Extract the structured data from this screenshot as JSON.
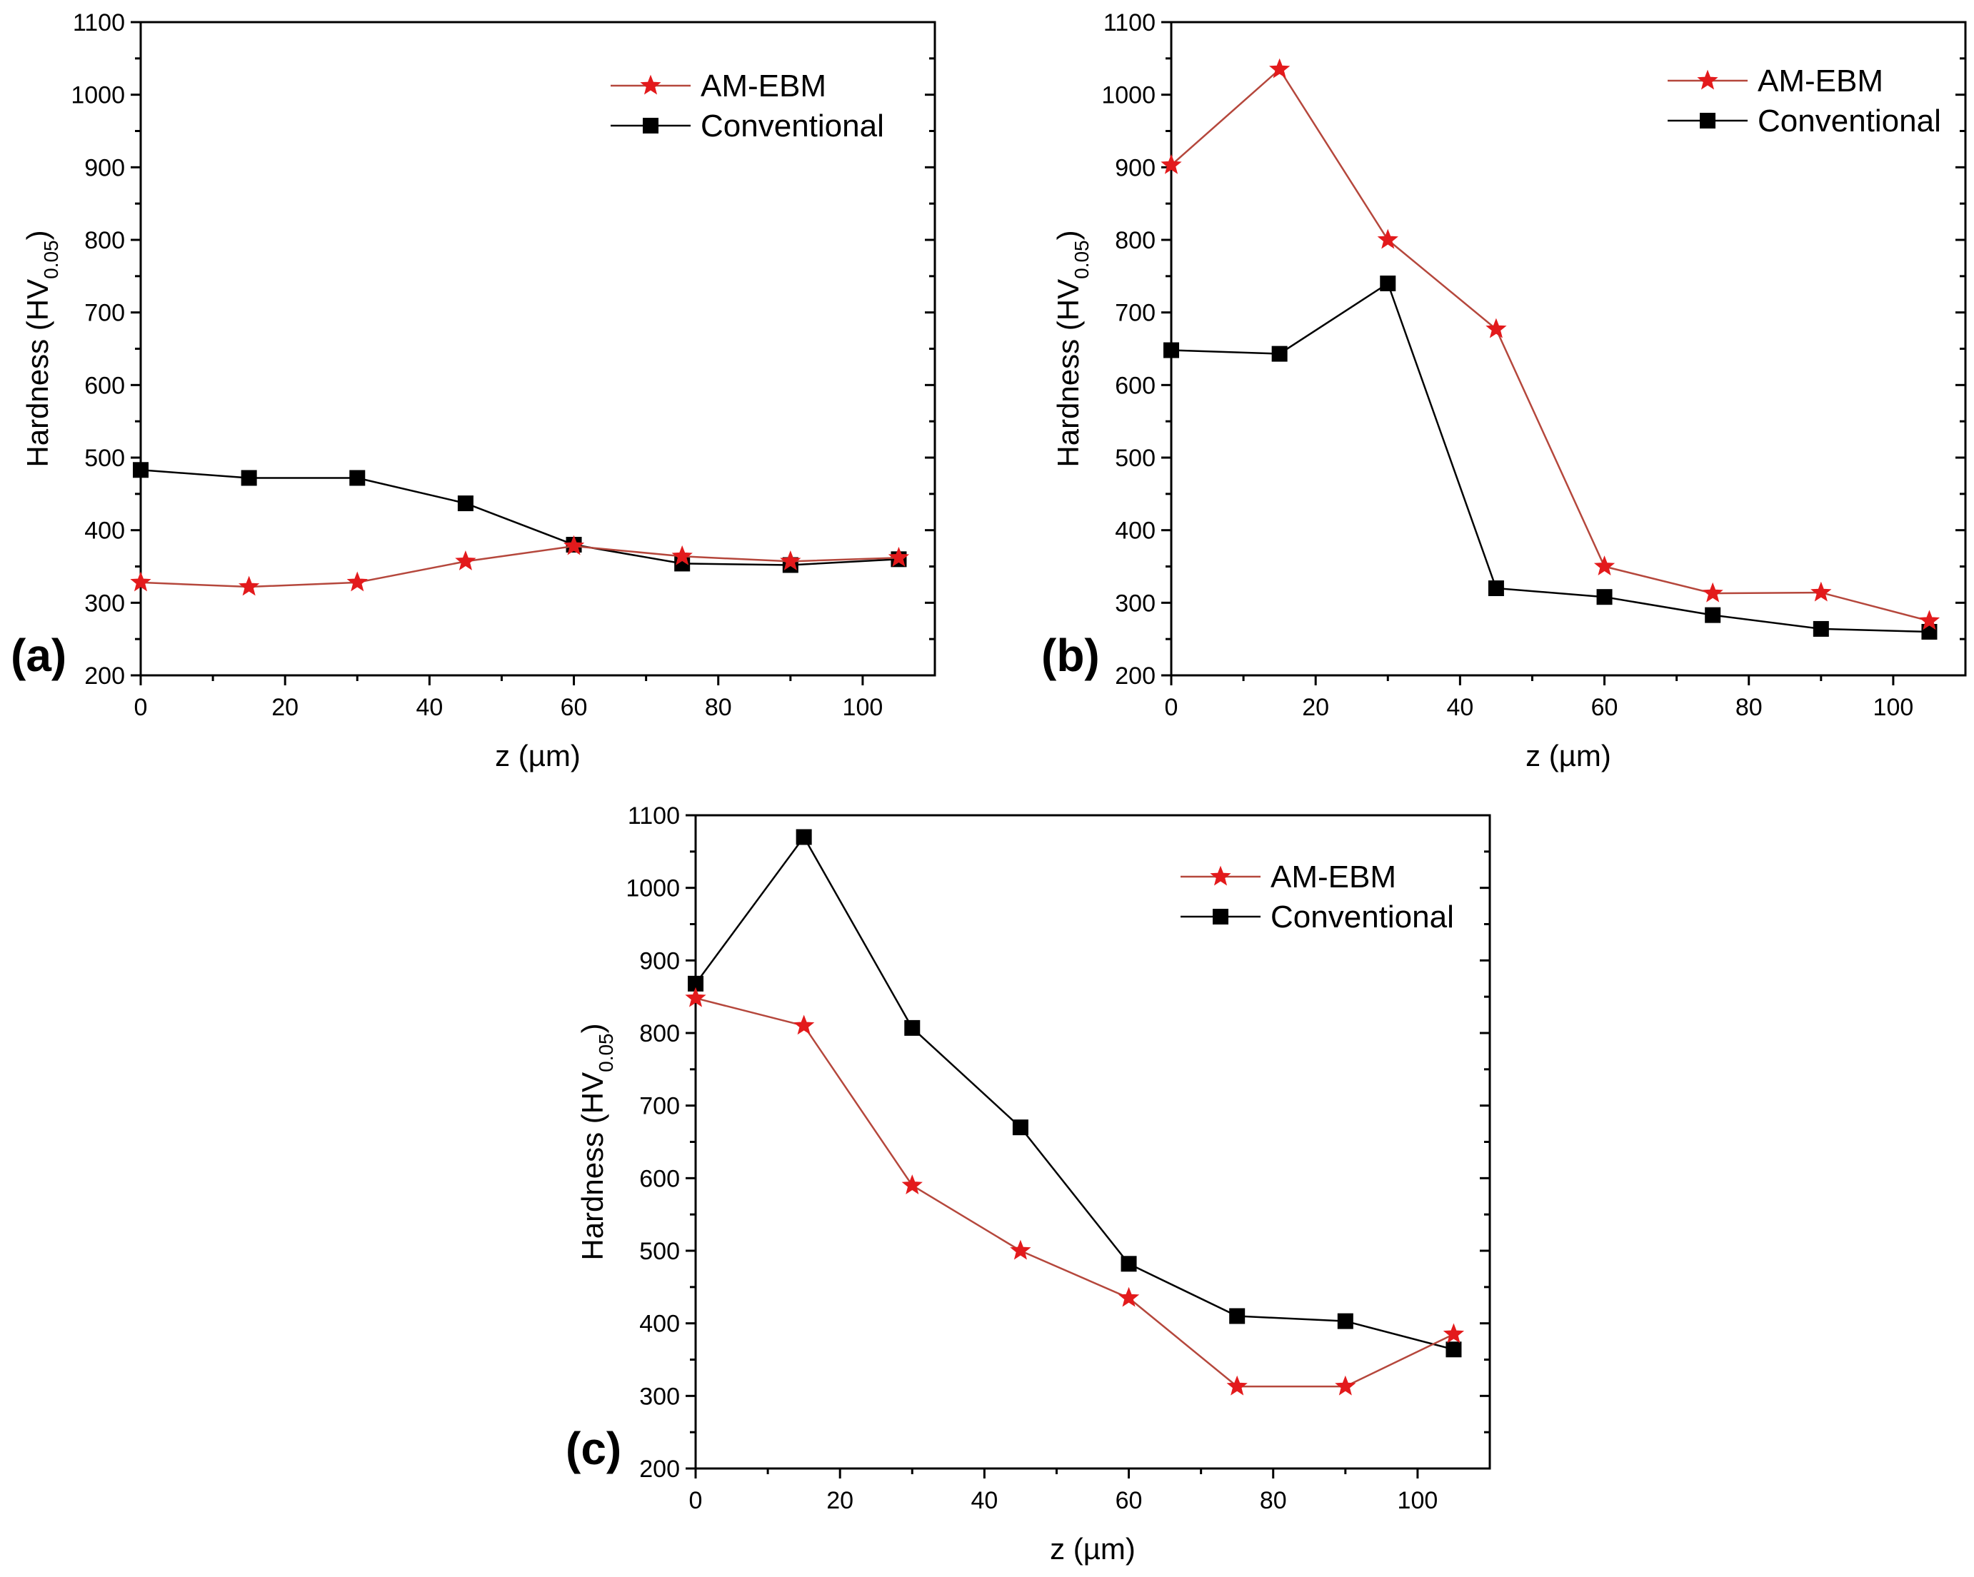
{
  "chart_data": [
    {
      "type": "line",
      "panel_label": "(a)",
      "xlabel": "z (µm)",
      "ylabel": "Hardness (HV",
      "ylabel_sub": "0.05",
      "ylabel_close": ")",
      "xlim": [
        0,
        110
      ],
      "ylim": [
        200,
        1100
      ],
      "xticks": [
        0,
        20,
        40,
        60,
        80,
        100
      ],
      "yticks": [
        200,
        300,
        400,
        500,
        600,
        700,
        800,
        900,
        1000,
        1100
      ],
      "x": [
        0,
        15,
        30,
        45,
        60,
        75,
        90,
        105
      ],
      "series": [
        {
          "name": "AM-EBM",
          "marker": "star",
          "color": "#e31a1c",
          "line_color": "#b5473c",
          "values": [
            328,
            322,
            328,
            357,
            378,
            364,
            357,
            362
          ]
        },
        {
          "name": "Conventional",
          "marker": "square",
          "color": "#000000",
          "line_color": "#000000",
          "values": [
            483,
            472,
            472,
            437,
            380,
            354,
            352,
            360
          ]
        }
      ],
      "legend_position": "top-right"
    },
    {
      "type": "line",
      "panel_label": "(b)",
      "xlabel": "z (µm)",
      "ylabel": "Hardness (HV",
      "ylabel_sub": "0.05",
      "ylabel_close": ")",
      "xlim": [
        0,
        110
      ],
      "ylim": [
        200,
        1100
      ],
      "xticks": [
        0,
        20,
        40,
        60,
        80,
        100
      ],
      "yticks": [
        200,
        300,
        400,
        500,
        600,
        700,
        800,
        900,
        1000,
        1100
      ],
      "x": [
        0,
        15,
        30,
        45,
        60,
        75,
        90,
        105
      ],
      "series": [
        {
          "name": "AM-EBM",
          "marker": "star",
          "color": "#e31a1c",
          "line_color": "#b5473c",
          "values": [
            903,
            1035,
            800,
            677,
            350,
            313,
            314,
            275
          ]
        },
        {
          "name": "Conventional",
          "marker": "square",
          "color": "#000000",
          "line_color": "#000000",
          "values": [
            648,
            643,
            740,
            320,
            308,
            283,
            264,
            260
          ]
        }
      ],
      "legend_position": "top-right"
    },
    {
      "type": "line",
      "panel_label": "(c)",
      "xlabel": "z (µm)",
      "ylabel": "Hardness (HV",
      "ylabel_sub": "0.05",
      "ylabel_close": ")",
      "xlim": [
        0,
        110
      ],
      "ylim": [
        200,
        1100
      ],
      "xticks": [
        0,
        20,
        40,
        60,
        80,
        100
      ],
      "yticks": [
        200,
        300,
        400,
        500,
        600,
        700,
        800,
        900,
        1000,
        1100
      ],
      "x": [
        0,
        15,
        30,
        45,
        60,
        75,
        90,
        105
      ],
      "series": [
        {
          "name": "AM-EBM",
          "marker": "star",
          "color": "#e31a1c",
          "line_color": "#b5473c",
          "values": [
            848,
            810,
            590,
            500,
            435,
            313,
            313,
            385
          ]
        },
        {
          "name": "Conventional",
          "marker": "square",
          "color": "#000000",
          "line_color": "#000000",
          "values": [
            868,
            1070,
            807,
            670,
            482,
            410,
            403,
            364
          ]
        }
      ],
      "legend_position": "top-right"
    }
  ]
}
